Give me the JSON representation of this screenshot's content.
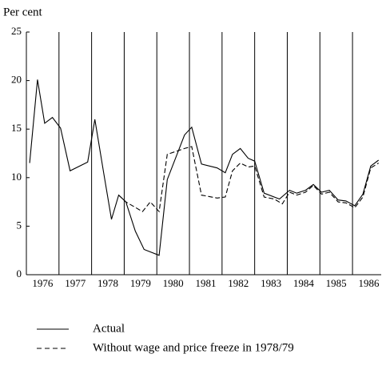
{
  "chart_data": {
    "type": "line",
    "y_label": "Per cent",
    "categories": [
      "1976",
      "1977",
      "1978",
      "1979",
      "1980",
      "1981",
      "1982",
      "1983",
      "1984",
      "1985",
      "1986"
    ],
    "xlim": [
      1976,
      1986.88
    ],
    "ylim": [
      0,
      25
    ],
    "yticks": [
      0,
      5,
      10,
      15,
      20,
      25
    ],
    "series": [
      {
        "name": "Actual",
        "color": "#000000",
        "dash": false,
        "x": [
          1976.1,
          1976.34,
          1976.56,
          1976.8,
          1977.05,
          1977.34,
          1977.88,
          1978.1,
          1978.37,
          1978.61,
          1978.83,
          1979.05,
          1979.34,
          1979.61,
          1980.07,
          1980.32,
          1980.85,
          1981.07,
          1981.37,
          1981.85,
          1982.1,
          1982.32,
          1982.56,
          1982.8,
          1983.0,
          1983.29,
          1983.76,
          1984.07,
          1984.29,
          1984.56,
          1984.8,
          1985.05,
          1985.29,
          1985.56,
          1985.8,
          1986.07,
          1986.32,
          1986.56,
          1986.8
        ],
        "values": [
          11.5,
          20.1,
          15.6,
          16.2,
          15.1,
          10.7,
          11.6,
          16.0,
          10.5,
          5.7,
          8.2,
          7.5,
          4.5,
          2.6,
          2.0,
          9.8,
          14.4,
          15.2,
          11.4,
          11.0,
          10.5,
          12.4,
          13.0,
          12.0,
          11.7,
          8.4,
          7.8,
          8.7,
          8.4,
          8.7,
          9.3,
          8.5,
          8.7,
          7.7,
          7.6,
          7.1,
          8.3,
          11.2,
          11.8
        ]
      },
      {
        "name": "Without wage and price freeze in 1978/79",
        "color": "#000000",
        "dash": true,
        "x": [
          1978.83,
          1979.05,
          1979.56,
          1979.8,
          1980.07,
          1980.32,
          1980.85,
          1981.07,
          1981.37,
          1981.85,
          1982.1,
          1982.32,
          1982.56,
          1982.8,
          1983.0,
          1983.29,
          1983.6,
          1983.85,
          1984.07,
          1984.29,
          1984.56,
          1984.8,
          1985.05,
          1985.29,
          1985.56,
          1985.8,
          1986.07,
          1986.32,
          1986.56,
          1986.8
        ],
        "values": [
          8.2,
          7.5,
          6.5,
          7.5,
          6.5,
          12.4,
          13.0,
          13.2,
          8.2,
          7.9,
          8.0,
          10.7,
          11.5,
          11.1,
          11.2,
          8.0,
          7.8,
          7.3,
          8.5,
          8.2,
          8.5,
          9.2,
          8.3,
          8.5,
          7.5,
          7.4,
          6.9,
          8.0,
          11.0,
          11.5
        ]
      }
    ]
  }
}
